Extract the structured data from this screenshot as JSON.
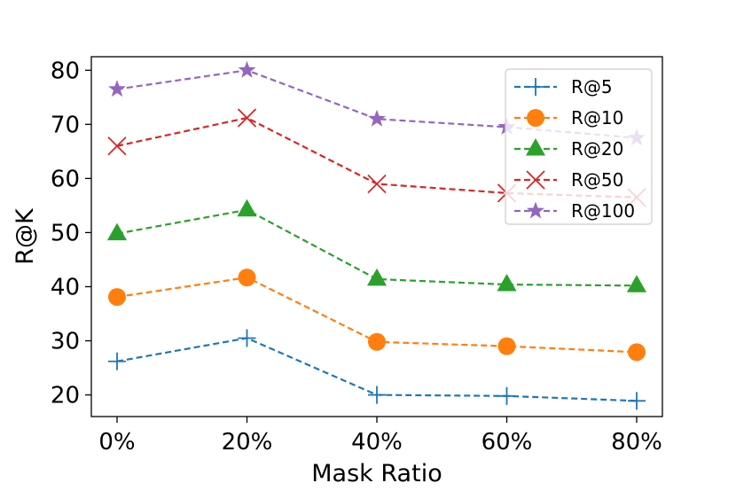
{
  "chart_data": {
    "type": "line",
    "xlabel": "Mask Ratio",
    "ylabel": "R@K",
    "categories": [
      "0%",
      "20%",
      "40%",
      "60%",
      "80%"
    ],
    "yticks": [
      "20",
      "30",
      "40",
      "50",
      "60",
      "70",
      "80"
    ],
    "ylim": [
      16,
      82.5
    ],
    "legend_position": "top-right",
    "grid": false,
    "series": [
      {
        "name": "R@5",
        "color": "#1f77b4",
        "marker": "plus",
        "values": [
          26.2,
          30.5,
          20.0,
          19.8,
          18.9
        ]
      },
      {
        "name": "R@10",
        "color": "#ff7f0e",
        "marker": "circle",
        "values": [
          38.1,
          41.7,
          29.8,
          29.0,
          27.9
        ]
      },
      {
        "name": "R@20",
        "color": "#2ca02c",
        "marker": "triangle",
        "values": [
          49.8,
          54.2,
          41.4,
          40.4,
          40.2
        ]
      },
      {
        "name": "R@50",
        "color": "#d62728",
        "marker": "x",
        "values": [
          66.0,
          71.2,
          59.0,
          57.3,
          56.5
        ]
      },
      {
        "name": "R@100",
        "color": "#9467bd",
        "marker": "star",
        "values": [
          76.5,
          80.0,
          71.0,
          69.5,
          67.5
        ]
      }
    ]
  }
}
